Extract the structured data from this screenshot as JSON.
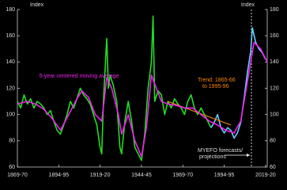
{
  "chart_data": {
    "type": "line",
    "y_label_left": "Index",
    "y_label_right": "Index",
    "xlim": [
      1869,
      2020
    ],
    "xticks": [
      {
        "value": 1869,
        "label": "1869-70"
      },
      {
        "value": 1894,
        "label": "1894-95"
      },
      {
        "value": 1919,
        "label": "1919-20"
      },
      {
        "value": 1944,
        "label": "1944-45"
      },
      {
        "value": 1969,
        "label": "1969-70"
      },
      {
        "value": 1994,
        "label": "1994-95"
      },
      {
        "value": 2019,
        "label": "2019-20"
      }
    ],
    "ylim": [
      60,
      180
    ],
    "yticks": [
      60,
      80,
      100,
      120,
      140,
      160,
      180
    ],
    "series": [
      {
        "color": "#22dd22",
        "x": [
          1869,
          1871,
          1873,
          1875,
          1877,
          1879,
          1881,
          1883,
          1885,
          1887,
          1889,
          1891,
          1893,
          1895,
          1897,
          1899,
          1901,
          1903,
          1905,
          1907,
          1909,
          1911,
          1913,
          1915,
          1917,
          1919,
          1920,
          1921,
          1923,
          1924,
          1925,
          1927,
          1929,
          1931,
          1932,
          1934,
          1936,
          1938,
          1940,
          1942,
          1944,
          1946,
          1948,
          1950,
          1951,
          1952,
          1954,
          1956,
          1958,
          1960,
          1962,
          1964,
          1966,
          1968,
          1970,
          1972,
          1974,
          1976,
          1978,
          1980,
          1982,
          1984,
          1986
        ],
        "values": [
          110,
          105,
          115,
          108,
          112,
          105,
          110,
          108,
          105,
          100,
          103,
          95,
          88,
          85,
          92,
          100,
          110,
          105,
          112,
          120,
          115,
          112,
          108,
          100,
          92,
          75,
          70,
          110,
          158,
          120,
          130,
          122,
          110,
          75,
          70,
          95,
          110,
          95,
          75,
          70,
          65,
          85,
          120,
          140,
          175,
          110,
          118,
          115,
          100,
          110,
          105,
          112,
          108,
          105,
          100,
          110,
          115,
          105,
          100,
          105,
          100,
          95,
          90
        ]
      },
      {
        "color": "#66ccff",
        "x": [
          1986,
          1988,
          1990,
          1992,
          1994,
          1996,
          1998,
          2000,
          2002,
          2004,
          2006,
          2008,
          2010,
          2011,
          2013,
          2015,
          2017,
          2019
        ],
        "values": [
          90,
          94,
          100,
          90,
          86,
          90,
          88,
          82,
          86,
          94,
          112,
          132,
          148,
          166,
          155,
          150,
          147,
          142
        ]
      },
      {
        "color": "#ff8800",
        "x": [
          1960,
          1998
        ],
        "values": [
          110,
          92
        ]
      },
      {
        "name": "5-year centered moving average",
        "color": "#ee22ee",
        "x": [
          1869,
          1875,
          1880,
          1885,
          1890,
          1895,
          1900,
          1905,
          1908,
          1912,
          1916,
          1920,
          1923,
          1926,
          1930,
          1932,
          1936,
          1940,
          1944,
          1947,
          1950,
          1953,
          1956,
          1960,
          1965,
          1970,
          1975,
          1980,
          1985,
          1990,
          1995,
          2000,
          2004,
          2008,
          2012,
          2016,
          2020
        ],
        "values": [
          108,
          110,
          108,
          104,
          97,
          88,
          100,
          112,
          118,
          113,
          100,
          95,
          128,
          120,
          100,
          85,
          100,
          80,
          68,
          90,
          130,
          120,
          110,
          108,
          107,
          105,
          105,
          100,
          95,
          92,
          88,
          86,
          95,
          125,
          155,
          150,
          140
        ]
      }
    ],
    "annotations": [
      "Trend: 1865-66",
      "to 1995-96",
      "MYEFO forecasts/",
      "projections"
    ]
  }
}
